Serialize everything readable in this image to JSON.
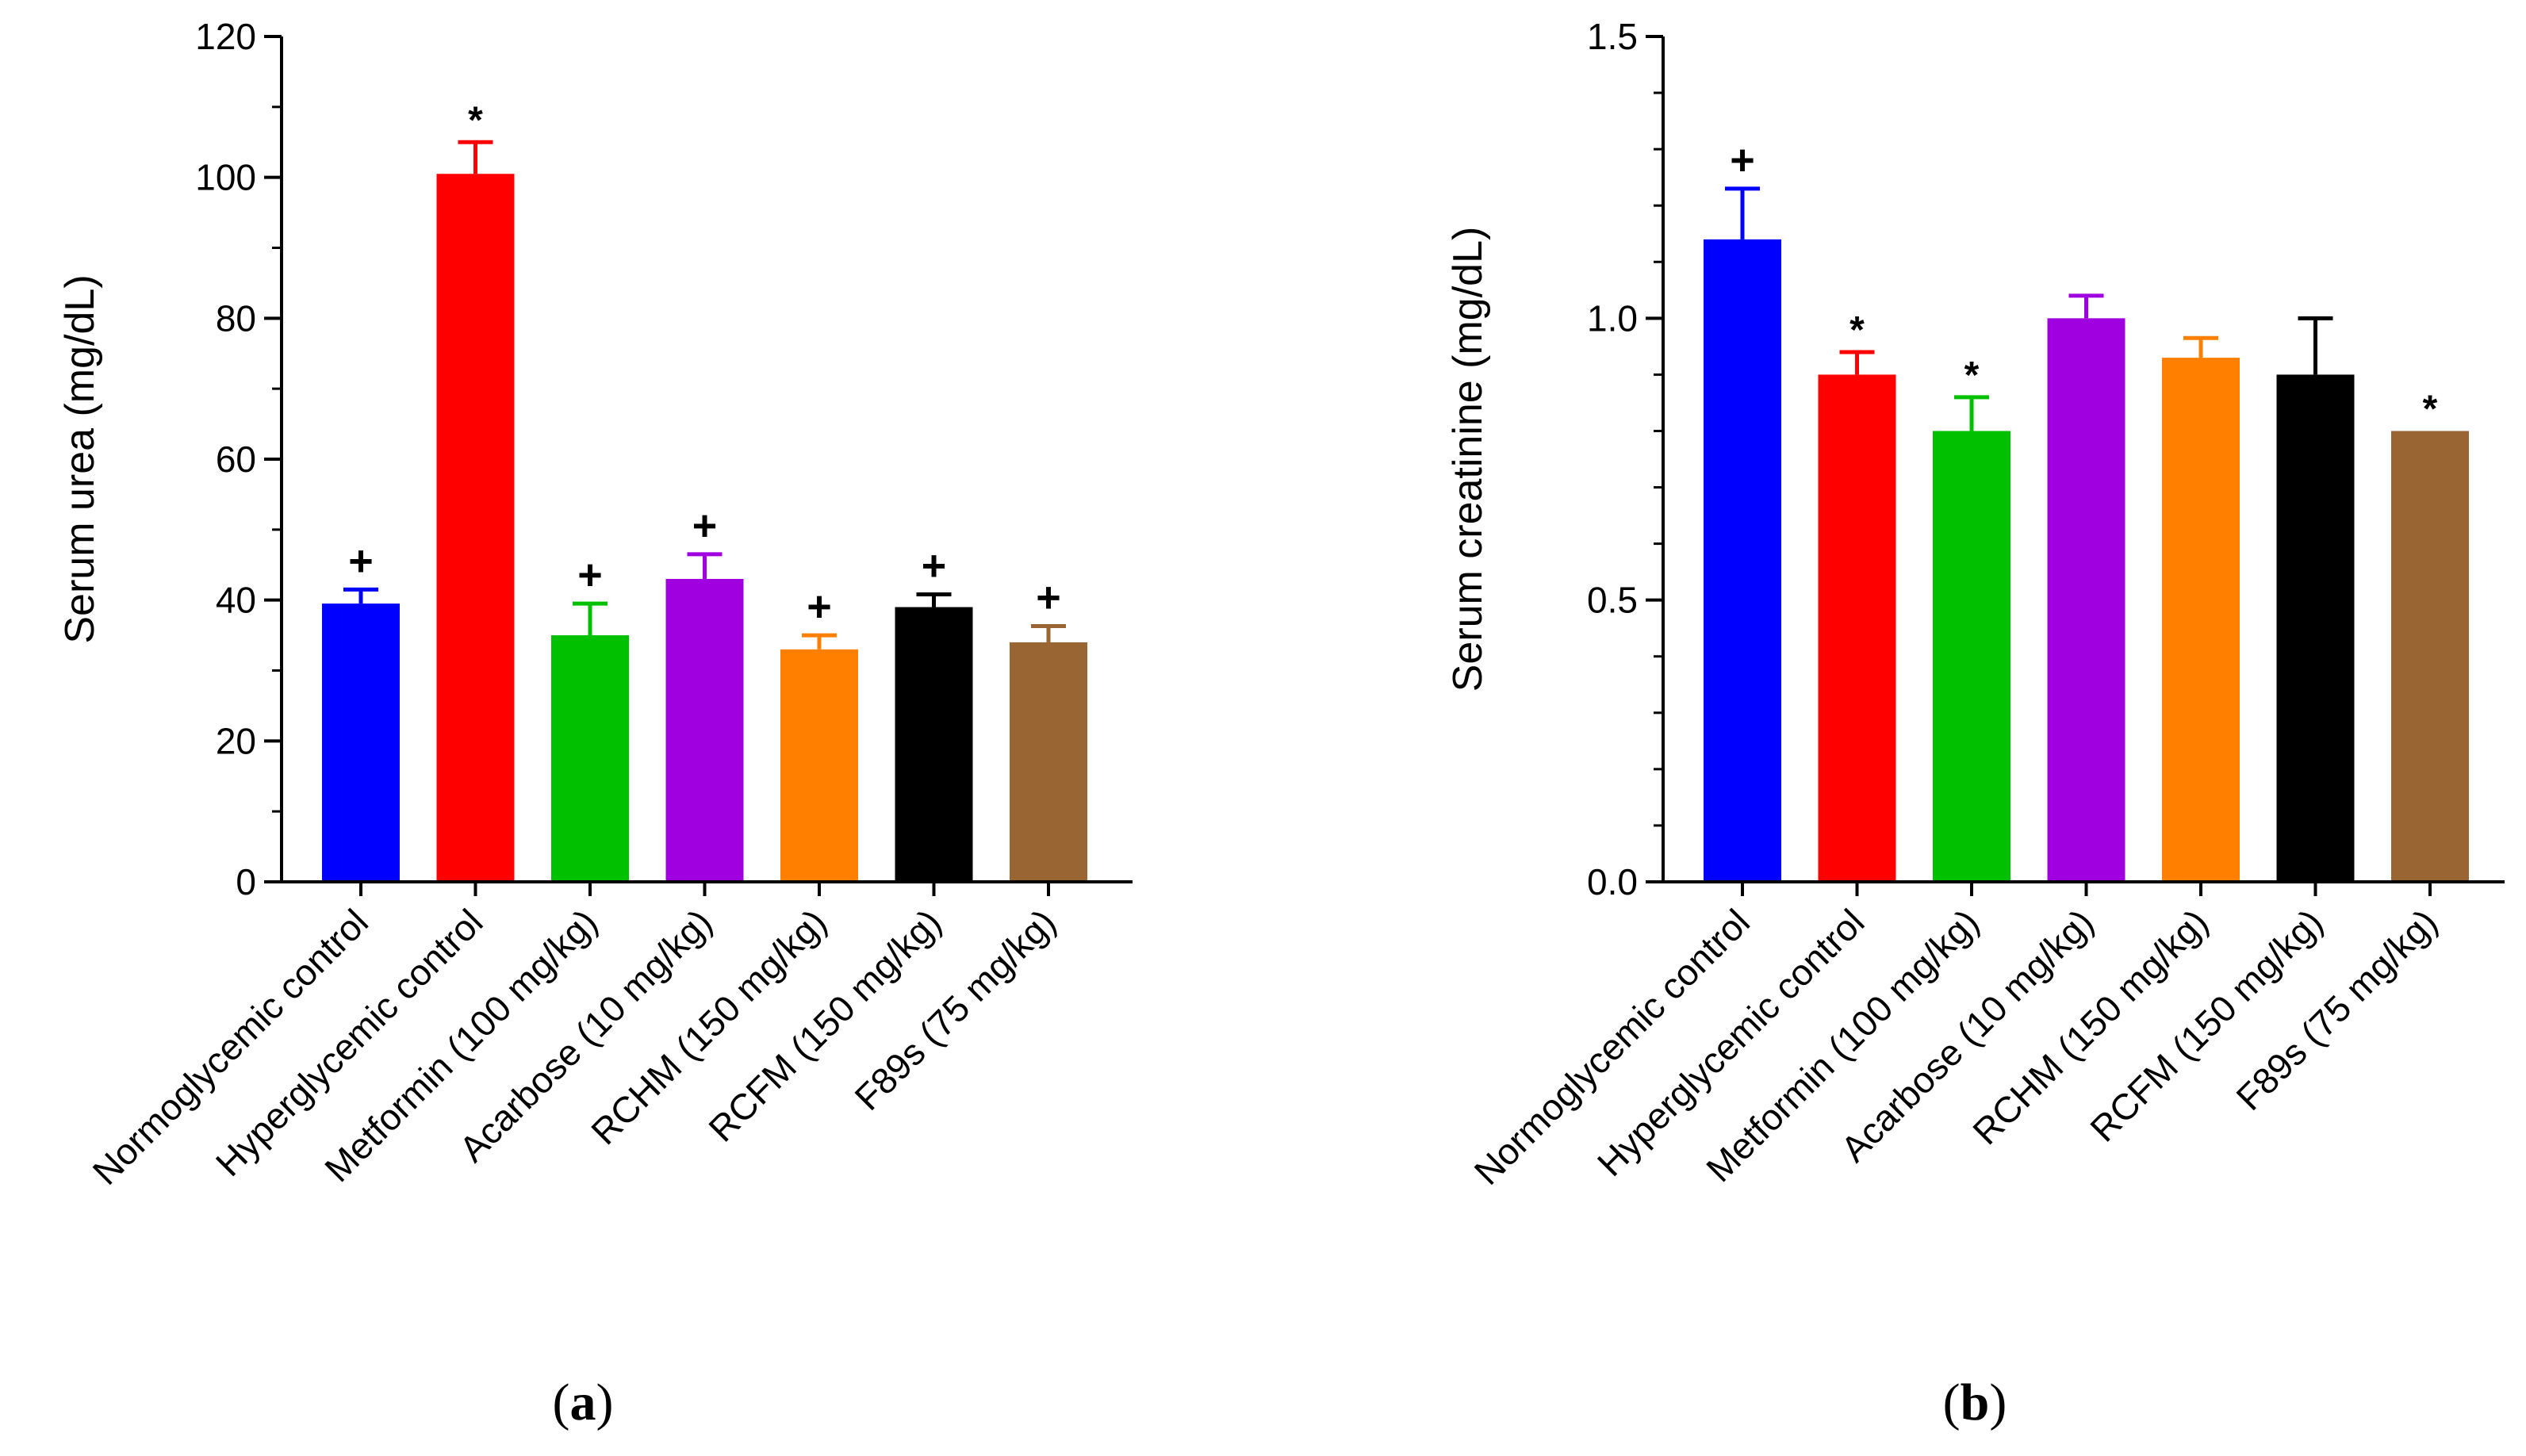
{
  "figure": {
    "panels": [
      {
        "label_open": "(",
        "label_letter": "a",
        "label_close": ")"
      },
      {
        "label_open": "(",
        "label_letter": "b",
        "label_close": ")"
      }
    ]
  },
  "chart_data": [
    {
      "type": "bar",
      "title": "",
      "xlabel": "",
      "ylabel": "Serum urea (mg/dL)",
      "ylim": [
        0,
        120
      ],
      "yticks": [
        0,
        20,
        40,
        60,
        80,
        100,
        120
      ],
      "ytick_labels": [
        "0",
        "20",
        "40",
        "60",
        "80",
        "100",
        "120"
      ],
      "minor_tick_step": 10,
      "grid": false,
      "categories": [
        "Normoglycemic control",
        "Hyperglycemic control",
        "Metformin (100 mg/kg)",
        "Acarbose (10 mg/kg)",
        "RCHM (150 mg/kg)",
        "RCFM (150 mg/kg)",
        "F89s (75 mg/kg)"
      ],
      "values": [
        39.5,
        100.5,
        35,
        43,
        33,
        39,
        34
      ],
      "errors": [
        2,
        4.5,
        4.5,
        3.5,
        2,
        1.8,
        2.3
      ],
      "annotations": [
        "+",
        "*",
        "+",
        "+",
        "+",
        "+",
        "+"
      ],
      "colors": [
        "#0000ff",
        "#ff0000",
        "#00c000",
        "#a000e0",
        "#ff8000",
        "#000000",
        "#996633"
      ]
    },
    {
      "type": "bar",
      "title": "",
      "xlabel": "",
      "ylabel": "Serum creatinine (mg/dL)",
      "ylim": [
        0,
        1.5
      ],
      "yticks": [
        0,
        0.5,
        1.0,
        1.5
      ],
      "ytick_labels": [
        "0.0",
        "0.5",
        "1.0",
        "1.5"
      ],
      "minor_tick_step": 0.1,
      "grid": false,
      "categories": [
        "Normoglycemic control",
        "Hyperglycemic control",
        "Metformin (100 mg/kg)",
        "Acarbose (10 mg/kg)",
        "RCHM (150 mg/kg)",
        "RCFM (150 mg/kg)",
        "F89s (75 mg/kg)"
      ],
      "values": [
        1.14,
        0.9,
        0.8,
        1.0,
        0.93,
        0.9,
        0.8
      ],
      "errors": [
        0.09,
        0.04,
        0.06,
        0.04,
        0.035,
        0.1,
        0.0
      ],
      "annotations": [
        "+",
        "*",
        "*",
        "",
        "",
        "",
        "*"
      ],
      "colors": [
        "#0000ff",
        "#ff0000",
        "#00c000",
        "#a000e0",
        "#ff8000",
        "#000000",
        "#996633"
      ]
    }
  ]
}
